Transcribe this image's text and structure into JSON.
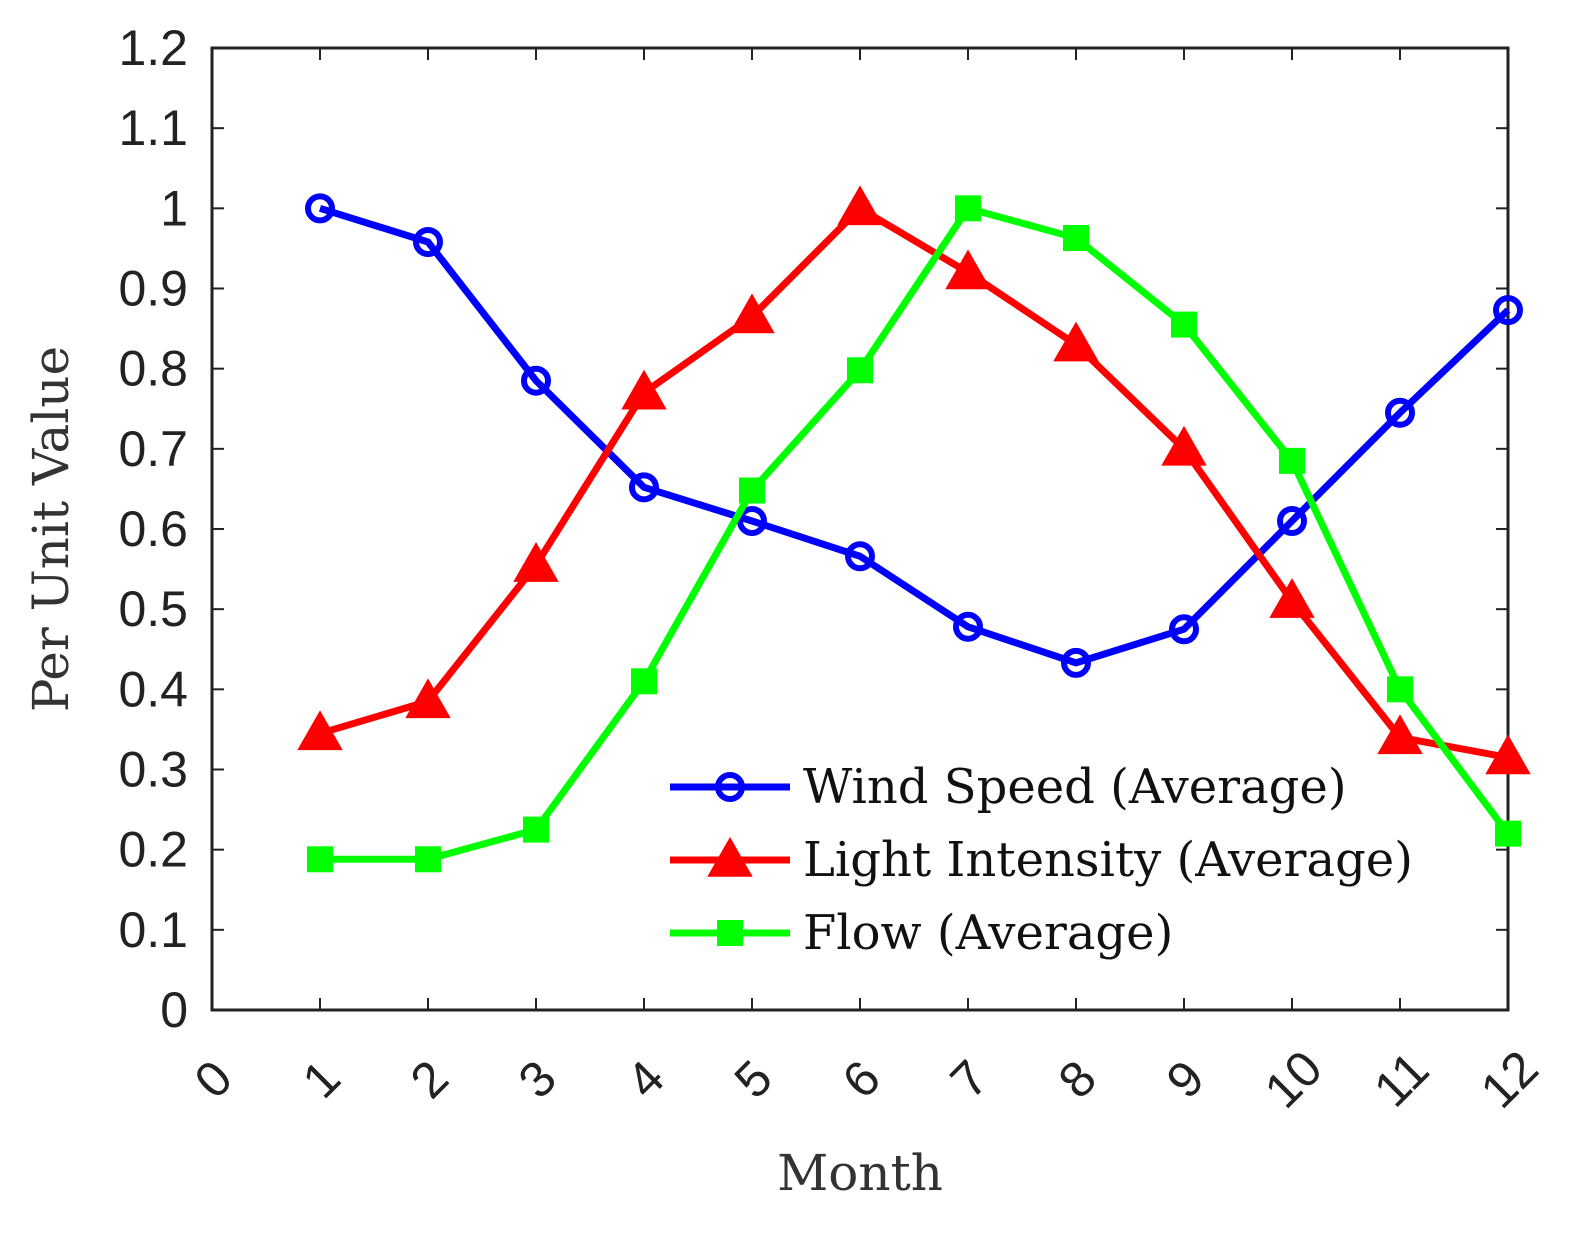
{
  "chart_data": {
    "type": "line",
    "title": "",
    "xlabel": "Month",
    "ylabel": "Per Unit Value",
    "xlim": [
      0,
      12
    ],
    "ylim": [
      0,
      1.2
    ],
    "x_ticks": [
      "0",
      "1",
      "2",
      "3",
      "4",
      "5",
      "6",
      "7",
      "8",
      "9",
      "10",
      "11",
      "12"
    ],
    "y_ticks": [
      "0",
      "0.1",
      "0.2",
      "0.3",
      "0.4",
      "0.5",
      "0.6",
      "0.7",
      "0.8",
      "0.9",
      "1",
      "1.1",
      "1.2"
    ],
    "grid": false,
    "legend_position": "bottom-right",
    "x": [
      1,
      2,
      3,
      4,
      5,
      6,
      7,
      8,
      9,
      10,
      11,
      12
    ],
    "series": [
      {
        "name": "Wind Speed (Average)",
        "color": "#0000ff",
        "marker": "circle",
        "values": [
          1.0,
          0.958,
          0.785,
          0.652,
          0.61,
          0.566,
          0.478,
          0.433,
          0.475,
          0.61,
          0.745,
          0.873
        ]
      },
      {
        "name": "Light Intensity (Average)",
        "color": "#ff0000",
        "marker": "triangle",
        "values": [
          0.345,
          0.385,
          0.555,
          0.77,
          0.865,
          1.0,
          0.92,
          0.83,
          0.7,
          0.51,
          0.34,
          0.315
        ]
      },
      {
        "name": "Flow (Average)",
        "color": "#00ff00",
        "marker": "square",
        "values": [
          0.188,
          0.188,
          0.225,
          0.41,
          0.648,
          0.798,
          1.0,
          0.963,
          0.855,
          0.685,
          0.4,
          0.22
        ]
      }
    ]
  }
}
